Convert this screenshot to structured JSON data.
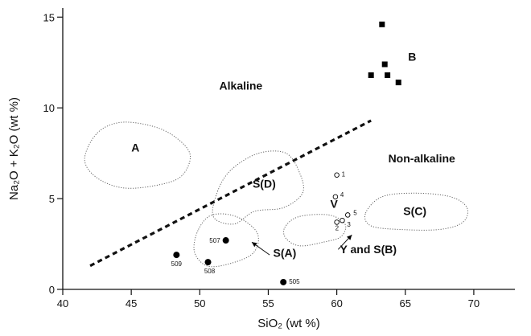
{
  "chart_data": {
    "type": "scatter",
    "xlabel": "SiO₂ (wt %)",
    "ylabel": "Na₂O + K₂O (wt %)",
    "xlim": [
      40,
      73
    ],
    "ylim": [
      0,
      15.5
    ],
    "x_ticks": [
      40,
      45,
      50,
      55,
      60,
      65,
      70
    ],
    "y_ticks": [
      0,
      5,
      10,
      15
    ],
    "grid": false,
    "divider": {
      "from": [
        42,
        1.3
      ],
      "to": [
        62.5,
        9.3
      ],
      "style": "dashed"
    },
    "field_labels": [
      {
        "text": "Alkaline",
        "x": 53,
        "y": 11.0
      },
      {
        "text": "Non-alkaline",
        "x": 66.2,
        "y": 7.0
      }
    ],
    "regions": [
      {
        "label": "A",
        "label_x": 45.3,
        "label_y": 7.6,
        "outline": [
          [
            41.6,
            7.2
          ],
          [
            42.5,
            8.6
          ],
          [
            44.2,
            9.2
          ],
          [
            46.5,
            9.0
          ],
          [
            48.2,
            8.4
          ],
          [
            49.3,
            7.4
          ],
          [
            48.6,
            6.2
          ],
          [
            46.6,
            5.7
          ],
          [
            44.3,
            5.6
          ],
          [
            42.4,
            6.2
          ]
        ]
      },
      {
        "label": "S(D)",
        "label_x": 54.7,
        "label_y": 5.6,
        "outline": [
          [
            51.3,
            5.4
          ],
          [
            52.3,
            6.6
          ],
          [
            54.3,
            7.5
          ],
          [
            56.3,
            7.5
          ],
          [
            57.3,
            6.4
          ],
          [
            57.5,
            5.3
          ],
          [
            56.1,
            4.5
          ],
          [
            54.0,
            4.3
          ],
          [
            52.5,
            3.6
          ],
          [
            51.0,
            4.0
          ]
        ]
      },
      {
        "label": "S(A)",
        "label_x": 56.2,
        "label_y": 1.8,
        "outline": [
          [
            49.9,
            3.3
          ],
          [
            50.9,
            4.1
          ],
          [
            52.7,
            4.0
          ],
          [
            54.2,
            3.1
          ],
          [
            53.9,
            2.0
          ],
          [
            52.1,
            1.4
          ],
          [
            50.5,
            1.3
          ],
          [
            49.6,
            2.1
          ]
        ]
      },
      {
        "label": "S(C)",
        "label_x": 65.7,
        "label_y": 4.1,
        "outline": [
          [
            62.1,
            4.2
          ],
          [
            63.3,
            5.1
          ],
          [
            65.7,
            5.3
          ],
          [
            68.3,
            5.1
          ],
          [
            69.5,
            4.5
          ],
          [
            69.2,
            3.7
          ],
          [
            67.5,
            3.3
          ],
          [
            64.6,
            3.3
          ],
          [
            62.5,
            3.5
          ]
        ]
      },
      {
        "label": "Y and S(B)",
        "label_x": 62.3,
        "label_y": 2.0,
        "outline": [
          [
            56.2,
            3.4
          ],
          [
            57.2,
            4.0
          ],
          [
            59.4,
            4.1
          ],
          [
            60.6,
            3.6
          ],
          [
            60.3,
            2.9
          ],
          [
            59.0,
            2.6
          ],
          [
            57.3,
            2.4
          ],
          [
            56.3,
            2.8
          ]
        ]
      }
    ],
    "series": [
      {
        "name": "B",
        "marker": "filled-square",
        "points": [
          [
            63.3,
            14.6
          ],
          [
            62.5,
            11.8
          ],
          [
            63.5,
            12.4
          ],
          [
            63.7,
            11.8
          ],
          [
            64.5,
            11.4
          ]
        ]
      },
      {
        "name": "V",
        "marker": "open-circle",
        "points": [
          {
            "x": 60.0,
            "y": 6.3,
            "label": "1"
          },
          {
            "x": 59.9,
            "y": 5.1,
            "label": "4"
          },
          {
            "x": 60.8,
            "y": 4.1,
            "label": "5"
          },
          {
            "x": 60.0,
            "y": 3.7,
            "label": "2"
          },
          {
            "x": 60.4,
            "y": 3.8,
            "label": "3"
          }
        ]
      },
      {
        "name": "",
        "marker": "filled-circle",
        "points": [
          {
            "x": 48.3,
            "y": 1.9,
            "label": "509"
          },
          {
            "x": 50.6,
            "y": 1.5,
            "label": "508"
          },
          {
            "x": 51.9,
            "y": 2.7,
            "label": "507"
          },
          {
            "x": 56.1,
            "y": 0.4,
            "label": "505"
          }
        ]
      }
    ],
    "annotations": [
      {
        "text": "B",
        "x": 65.5,
        "y": 12.6
      },
      {
        "text": "V",
        "x": 59.8,
        "y": 4.5
      }
    ]
  }
}
